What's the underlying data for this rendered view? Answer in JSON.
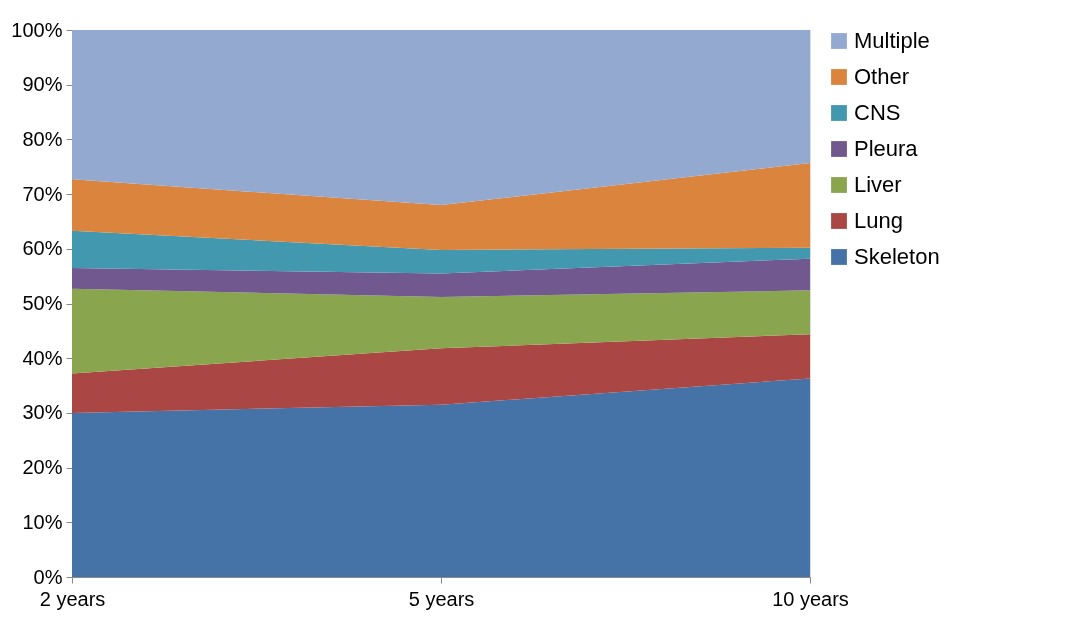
{
  "chart_data": {
    "type": "area",
    "stacked": true,
    "categories": [
      "2 years",
      "5 years",
      "10 years"
    ],
    "series": [
      {
        "name": "Skeleton",
        "color": "#4572a7",
        "values": [
          30,
          31.5,
          36.3
        ]
      },
      {
        "name": "Lung",
        "color": "#aa4643",
        "values": [
          7.2,
          10.3,
          8.1
        ]
      },
      {
        "name": "Liver",
        "color": "#89a54e",
        "values": [
          15.5,
          9.4,
          8.0
        ]
      },
      {
        "name": "Pleura",
        "color": "#71588f",
        "values": [
          3.8,
          4.3,
          5.8
        ]
      },
      {
        "name": "CNS",
        "color": "#4198af",
        "values": [
          6.8,
          4.3,
          2.0
        ]
      },
      {
        "name": "Other",
        "color": "#db843d",
        "values": [
          9.4,
          8.2,
          15.5
        ]
      },
      {
        "name": "Multiple",
        "color": "#93a9cf",
        "values": [
          27.3,
          32.0,
          24.3
        ]
      }
    ],
    "ylim": [
      0,
      100
    ],
    "yticks": [
      {
        "value": 0,
        "label": "0%"
      },
      {
        "value": 10,
        "label": "10%"
      },
      {
        "value": 20,
        "label": "20%"
      },
      {
        "value": 30,
        "label": "30%"
      },
      {
        "value": 40,
        "label": "40%"
      },
      {
        "value": 50,
        "label": "50%"
      },
      {
        "value": 60,
        "label": "60%"
      },
      {
        "value": 70,
        "label": "70%"
      },
      {
        "value": 80,
        "label": "80%"
      },
      {
        "value": 90,
        "label": "90%"
      },
      {
        "value": 100,
        "label": "100%"
      }
    ],
    "grid": false,
    "legend": "right"
  }
}
